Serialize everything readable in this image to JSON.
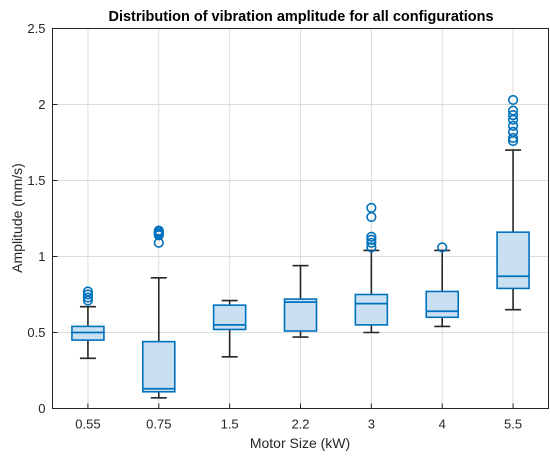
{
  "chart_data": {
    "type": "boxplot",
    "title": "Distribution of vibration amplitude for all configurations",
    "xlabel": "Motor Size (kW)",
    "ylabel": "Amplitude (mm/s)",
    "ylim": [
      0,
      2.5
    ],
    "yticks": [
      "0",
      "0.5",
      "1",
      "1.5",
      "2",
      "2.5"
    ],
    "grid": true,
    "colors": {
      "box_fill": "#c9e0f2",
      "box_edge": "#0072bd",
      "whisker": "#262626",
      "outlier": "#0072bd"
    },
    "categories": [
      "0.55",
      "0.75",
      "1.5",
      "2.2",
      "3",
      "4",
      "5.5"
    ],
    "boxes": [
      {
        "category": "0.55",
        "whisker_low": 0.33,
        "q1": 0.45,
        "median": 0.5,
        "q3": 0.54,
        "whisker_high": 0.67,
        "outliers": [
          0.71,
          0.73,
          0.75,
          0.77
        ]
      },
      {
        "category": "0.75",
        "whisker_low": 0.07,
        "q1": 0.11,
        "median": 0.13,
        "q3": 0.44,
        "whisker_high": 0.86,
        "outliers": [
          1.09,
          1.14,
          1.15,
          1.16,
          1.17
        ]
      },
      {
        "category": "1.5",
        "whisker_low": 0.34,
        "q1": 0.52,
        "median": 0.55,
        "q3": 0.68,
        "whisker_high": 0.71,
        "outliers": []
      },
      {
        "category": "2.2",
        "whisker_low": 0.47,
        "q1": 0.51,
        "median": 0.7,
        "q3": 0.72,
        "whisker_high": 0.94,
        "outliers": []
      },
      {
        "category": "3",
        "whisker_low": 0.5,
        "q1": 0.55,
        "median": 0.69,
        "q3": 0.75,
        "whisker_high": 1.04,
        "outliers": [
          1.06,
          1.09,
          1.11,
          1.13,
          1.26,
          1.32
        ]
      },
      {
        "category": "4",
        "whisker_low": 0.54,
        "q1": 0.6,
        "median": 0.64,
        "q3": 0.77,
        "whisker_high": 1.04,
        "outliers": [
          1.06
        ]
      },
      {
        "category": "5.5",
        "whisker_low": 0.65,
        "q1": 0.79,
        "median": 0.87,
        "q3": 1.16,
        "whisker_high": 1.7,
        "outliers": [
          1.76,
          1.78,
          1.82,
          1.86,
          1.9,
          1.93,
          1.96,
          2.03
        ]
      }
    ]
  }
}
